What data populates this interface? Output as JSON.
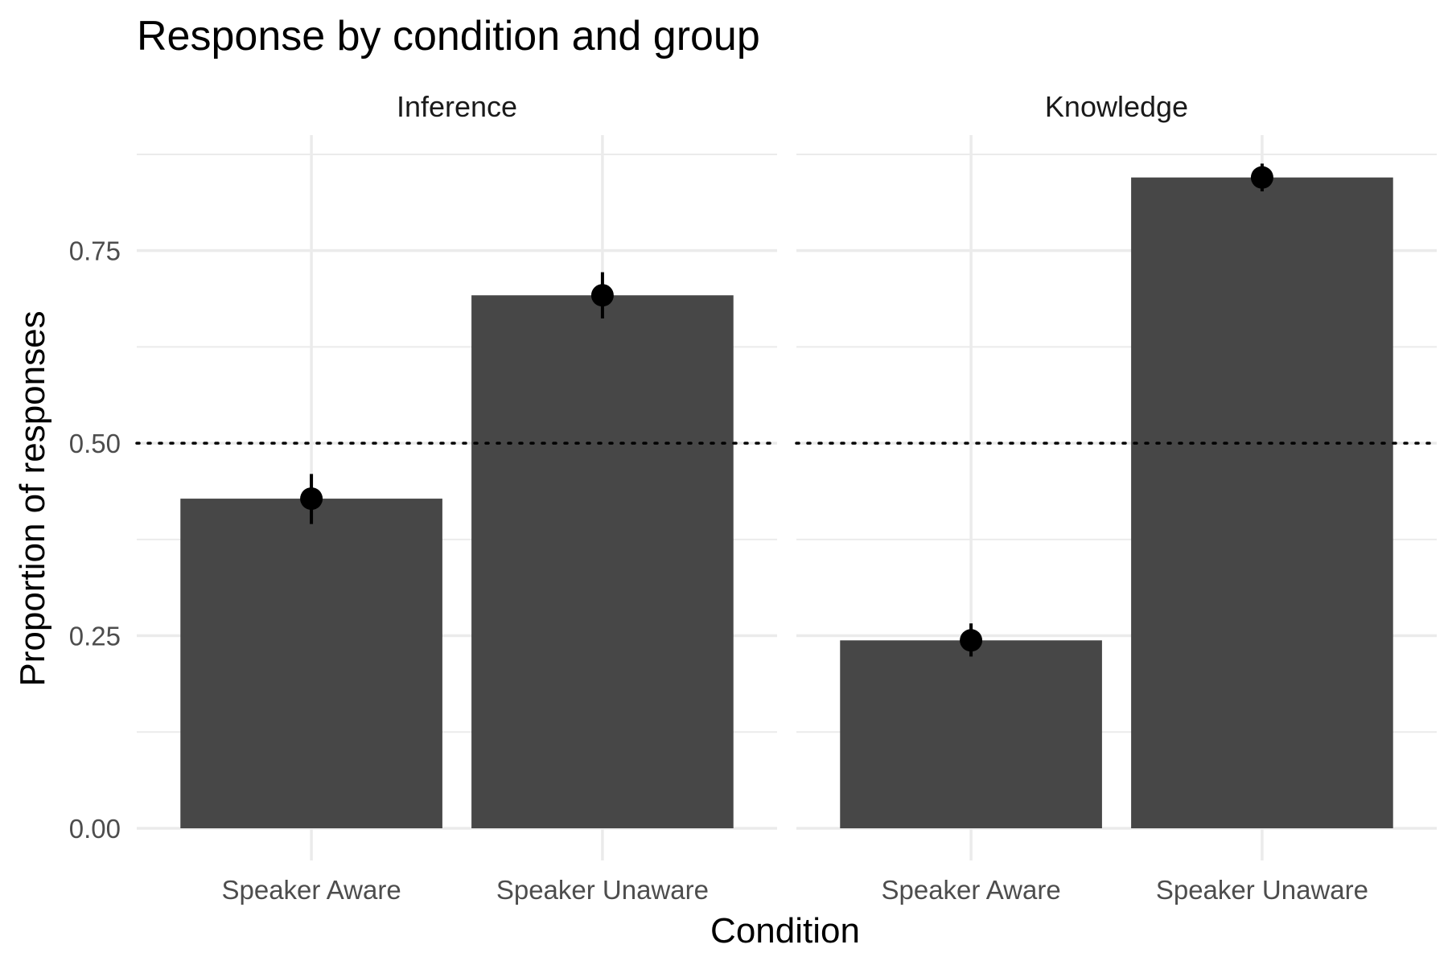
{
  "chart_data": {
    "type": "bar",
    "title": "Response by condition and group",
    "xlabel": "Condition",
    "ylabel": "Proportion of responses",
    "ylim": [
      0,
      0.9
    ],
    "yticks": [
      "0.00",
      "0.25",
      "0.50",
      "0.75"
    ],
    "reference_line": 0.5,
    "categories": [
      "Speaker Aware",
      "Speaker Unaware"
    ],
    "panels": [
      {
        "name": "Inference",
        "values": [
          0.428,
          0.692
        ],
        "error_low": [
          0.395,
          0.662
        ],
        "error_high": [
          0.46,
          0.722
        ]
      },
      {
        "name": "Knowledge",
        "values": [
          0.244,
          0.845
        ],
        "error_low": [
          0.223,
          0.827
        ],
        "error_high": [
          0.266,
          0.863
        ]
      }
    ],
    "colors": {
      "bar": "#474747",
      "point": "#000000",
      "grid": "#ebebeb"
    }
  }
}
